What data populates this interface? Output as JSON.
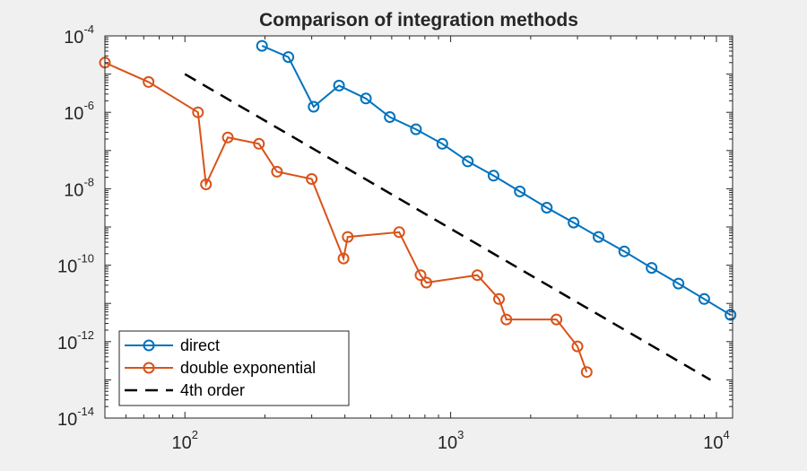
{
  "chart_data": {
    "type": "line",
    "title": "Comparison of integration methods",
    "xlabel": "",
    "ylabel": "",
    "xscale": "log",
    "yscale": "log",
    "xlim": [
      50,
      11500
    ],
    "ylim": [
      1e-14,
      0.0001
    ],
    "x_ticks": [
      {
        "value": 100,
        "base": "10",
        "exp": "2"
      },
      {
        "value": 1000,
        "base": "10",
        "exp": "3"
      },
      {
        "value": 10000,
        "base": "10",
        "exp": "4"
      }
    ],
    "y_ticks": [
      {
        "value": 0.0001,
        "base": "10",
        "exp": "-4"
      },
      {
        "value": 1e-06,
        "base": "10",
        "exp": "-6"
      },
      {
        "value": 1e-08,
        "base": "10",
        "exp": "-8"
      },
      {
        "value": 1e-10,
        "base": "10",
        "exp": "-10"
      },
      {
        "value": 1e-12,
        "base": "10",
        "exp": "-12"
      },
      {
        "value": 1e-14,
        "base": "10",
        "exp": "-14"
      }
    ],
    "grid": false,
    "legend_position": "bottom-left",
    "series": [
      {
        "name": "direct",
        "color": "#0072BD",
        "marker": "circle",
        "line": "solid",
        "points": [
          [
            195,
            5.5e-05
          ],
          [
            245,
            2.8e-05
          ],
          [
            305,
            1.4e-06
          ],
          [
            380,
            5e-06
          ],
          [
            480,
            2.3e-06
          ],
          [
            590,
            7.5e-07
          ],
          [
            740,
            3.6e-07
          ],
          [
            930,
            1.5e-07
          ],
          [
            1160,
            5.2e-08
          ],
          [
            1450,
            2.2e-08
          ],
          [
            1820,
            8.5e-09
          ],
          [
            2300,
            3.2e-09
          ],
          [
            2900,
            1.3e-09
          ],
          [
            3600,
            5.5e-10
          ],
          [
            4500,
            2.3e-10
          ],
          [
            5700,
            8.5e-11
          ],
          [
            7200,
            3.3e-11
          ],
          [
            9000,
            1.3e-11
          ],
          [
            11300,
            5e-12
          ]
        ]
      },
      {
        "name": "double exponential",
        "color": "#D95319",
        "marker": "circle",
        "line": "solid",
        "points": [
          [
            50,
            2e-05
          ],
          [
            73,
            6.2e-06
          ],
          [
            112,
            1e-06
          ],
          [
            120,
            1.3e-08
          ],
          [
            145,
            2.2e-07
          ],
          [
            190,
            1.5e-07
          ],
          [
            222,
            2.8e-08
          ],
          [
            300,
            1.8e-08
          ],
          [
            395,
            1.5e-10
          ],
          [
            410,
            5.5e-10
          ],
          [
            640,
            7.3e-10
          ],
          [
            770,
            5.5e-11
          ],
          [
            810,
            3.5e-11
          ],
          [
            1260,
            5.5e-11
          ],
          [
            1520,
            1.3e-11
          ],
          [
            1620,
            3.8e-12
          ],
          [
            2500,
            3.8e-12
          ],
          [
            3000,
            7.5e-13
          ],
          [
            3250,
            1.6e-13
          ]
        ]
      },
      {
        "name": "4th order",
        "color": "#000000",
        "marker": "none",
        "line": "dashed",
        "points": [
          [
            100,
            1e-05
          ],
          [
            9500,
            1e-13
          ]
        ]
      }
    ]
  }
}
